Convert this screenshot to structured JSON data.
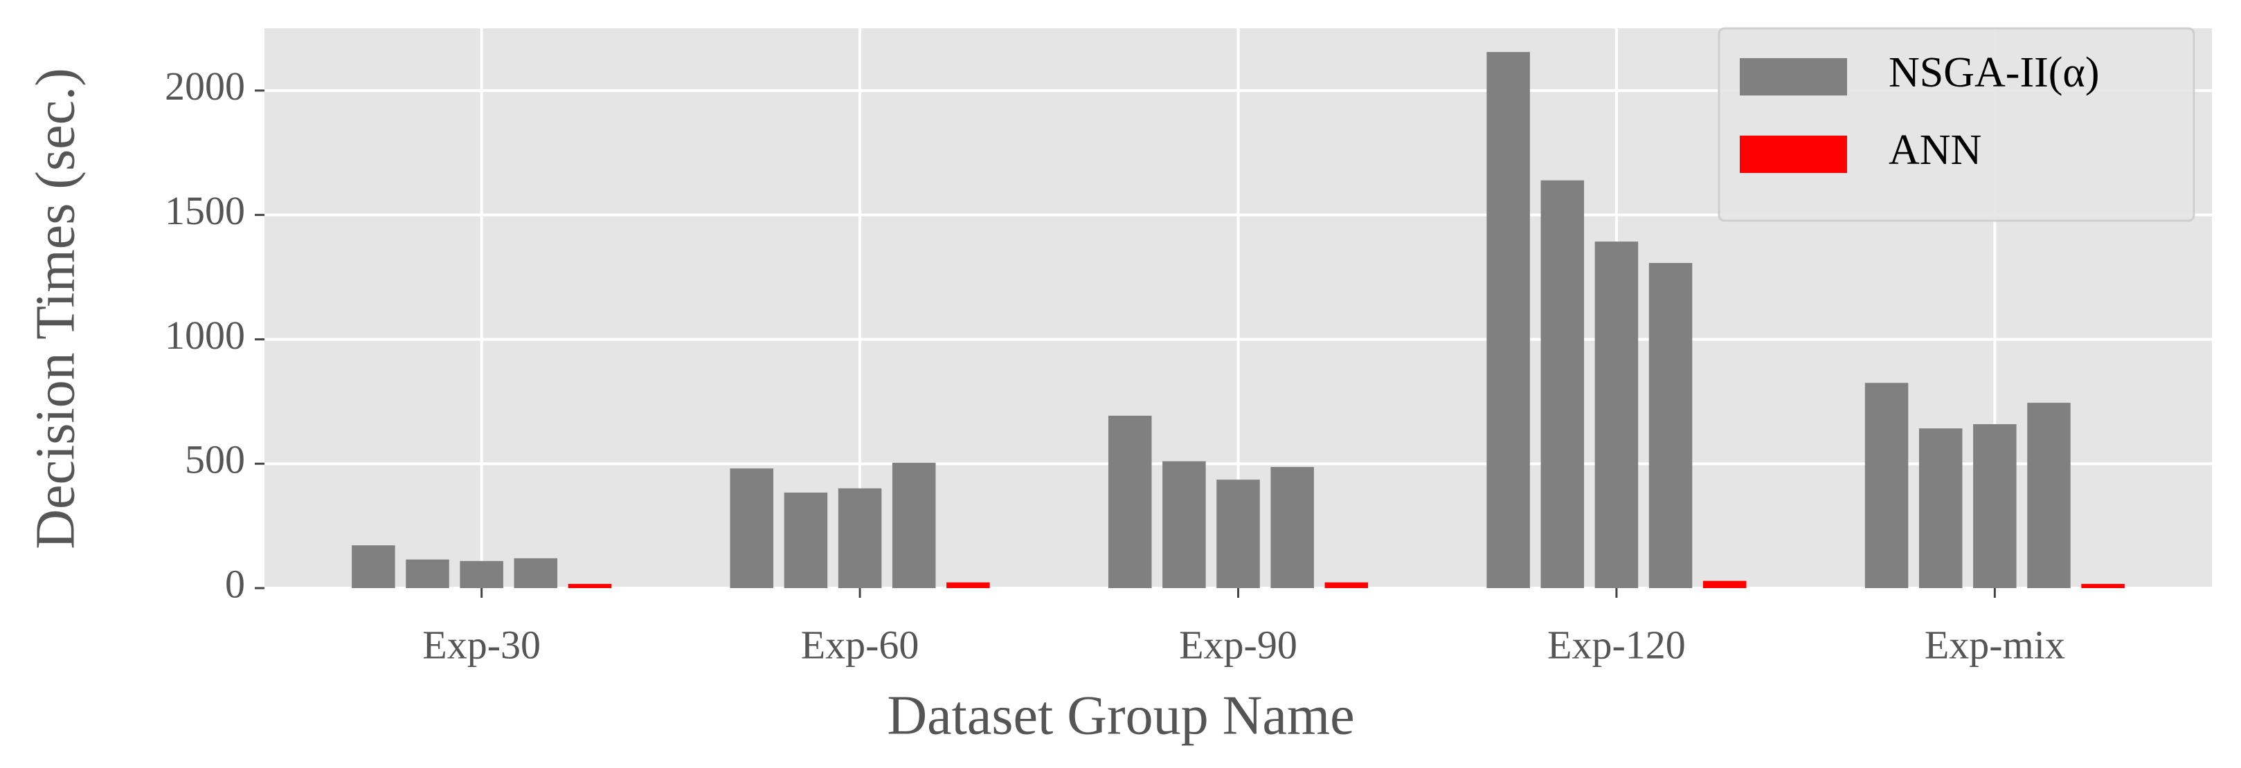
{
  "chart_data": {
    "type": "bar",
    "xlabel": "Dataset Group Name",
    "ylabel": "Decision Times (sec.)",
    "categories": [
      "Exp-30",
      "Exp-60",
      "Exp-90",
      "Exp-120",
      "Exp-mix"
    ],
    "series": [
      {
        "name": "NSGA-II(α)",
        "color": "#808080",
        "values": [
          [
            172,
            115,
            109,
            120
          ],
          [
            481,
            384,
            401,
            504
          ],
          [
            693,
            510,
            436,
            487
          ],
          [
            2155,
            1639,
            1393,
            1307
          ],
          [
            825,
            642,
            659,
            745
          ]
        ]
      },
      {
        "name": "ANN",
        "color": "#ff0000",
        "values": [
          17,
          23,
          23,
          29,
          17
        ]
      }
    ],
    "ylim": [
      0,
      2250
    ],
    "yticks": [
      0,
      500,
      1000,
      1500,
      2000
    ],
    "grid": true,
    "legend": "upper right"
  }
}
